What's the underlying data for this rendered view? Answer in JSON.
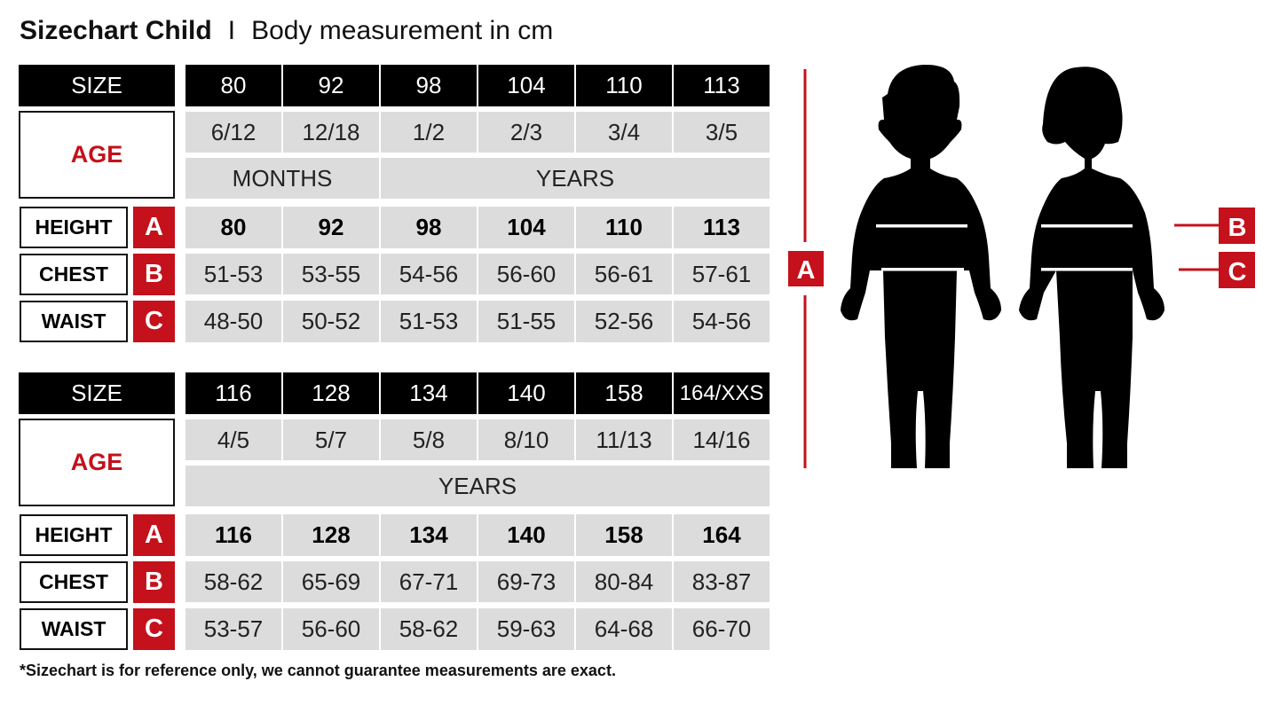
{
  "title": {
    "main": "Sizechart Child",
    "separator": "I",
    "sub": "Body measurement in cm"
  },
  "labels": {
    "size": "SIZE",
    "age": "AGE",
    "height": "HEIGHT",
    "chest": "CHEST",
    "waist": "WAIST",
    "a": "A",
    "b": "B",
    "c": "C"
  },
  "tables": [
    {
      "sizes": [
        "80",
        "92",
        "98",
        "104",
        "110",
        "113"
      ],
      "ages": [
        "6/12",
        "12/18",
        "1/2",
        "2/3",
        "3/4",
        "3/5"
      ],
      "age_units": [
        {
          "label": "MONTHS",
          "span": 2
        },
        {
          "label": "YEARS",
          "span": 4
        }
      ],
      "height": [
        "80",
        "92",
        "98",
        "104",
        "110",
        "113"
      ],
      "chest": [
        "51-53",
        "53-55",
        "54-56",
        "56-60",
        "56-61",
        "57-61"
      ],
      "waist": [
        "48-50",
        "50-52",
        "51-53",
        "51-55",
        "52-56",
        "54-56"
      ]
    },
    {
      "sizes": [
        "116",
        "128",
        "134",
        "140",
        "158",
        "164/XXS"
      ],
      "ages": [
        "4/5",
        "5/7",
        "5/8",
        "8/10",
        "11/13",
        "14/16"
      ],
      "age_units": [
        {
          "label": "YEARS",
          "span": 6
        }
      ],
      "height": [
        "116",
        "128",
        "134",
        "140",
        "158",
        "164"
      ],
      "chest": [
        "58-62",
        "65-69",
        "67-71",
        "69-73",
        "80-84",
        "83-87"
      ],
      "waist": [
        "53-57",
        "56-60",
        "58-62",
        "59-63",
        "64-68",
        "66-70"
      ]
    }
  ],
  "footnote": "*Sizechart is for reference only, we cannot guarantee measurements are exact.",
  "diagram": {
    "a": "A",
    "b": "B",
    "c": "C",
    "figures": [
      "boy-silhouette",
      "girl-silhouette"
    ]
  },
  "colors": {
    "accent": "#c4111b",
    "header": "#000000",
    "cell": "#dcdcdc"
  }
}
